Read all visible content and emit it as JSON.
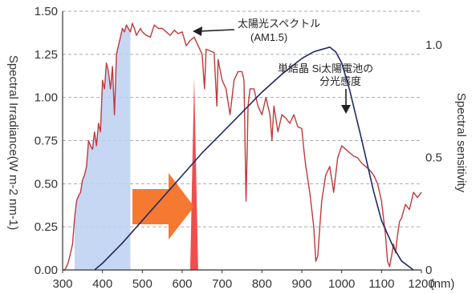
{
  "chart_data": {
    "type": "line",
    "title": "",
    "xlabel_unit": "(nm)",
    "ylabel_left": "Spectral Irradiance(W m-2 nm-1)",
    "ylabel_right": "Spectral sensitivity",
    "xlim": [
      300,
      1200
    ],
    "ylim_left": [
      0,
      1.5
    ],
    "ylim_right": [
      0,
      1.15
    ],
    "x_ticks": [
      "300",
      "400",
      "500",
      "600",
      "700",
      "800",
      "900",
      "1000",
      "1100",
      "1200"
    ],
    "y_left_ticks": [
      "0.00",
      "0.25",
      "0.50",
      "0.75",
      "1.00",
      "1.25",
      "1.50"
    ],
    "y_right_ticks": [
      "0",
      "0.5",
      "1.0"
    ],
    "grid": "horizontal dashed",
    "colors": {
      "irradiance": "#c0393b",
      "sensitivity": "#1f2a66",
      "blue_band": "#bcd0f2",
      "red_band": "#ee3b3b",
      "arrow": "#f46a1b",
      "grid": "#aaaaaa"
    },
    "series": [
      {
        "name": "太陽光スペクトル (AM1.5)",
        "axis": "left",
        "x": [
          300,
          305,
          310,
          315,
          320,
          325,
          330,
          335,
          340,
          345,
          350,
          355,
          360,
          365,
          370,
          375,
          380,
          385,
          390,
          395,
          400,
          405,
          410,
          415,
          420,
          425,
          430,
          435,
          440,
          445,
          450,
          455,
          460,
          465,
          470,
          475,
          480,
          485,
          490,
          495,
          500,
          510,
          520,
          530,
          540,
          550,
          560,
          570,
          580,
          590,
          600,
          610,
          620,
          630,
          640,
          650,
          656,
          660,
          670,
          680,
          687,
          690,
          700,
          710,
          720,
          725,
          730,
          740,
          750,
          755,
          760,
          763,
          765,
          770,
          780,
          790,
          800,
          810,
          820,
          825,
          830,
          840,
          850,
          860,
          870,
          880,
          890,
          900,
          905,
          910,
          920,
          930,
          935,
          940,
          945,
          950,
          960,
          970,
          980,
          990,
          1000,
          1010,
          1020,
          1030,
          1040,
          1050,
          1060,
          1070,
          1080,
          1090,
          1100,
          1110,
          1115,
          1120,
          1125,
          1130,
          1135,
          1140,
          1145,
          1150,
          1160,
          1170,
          1180,
          1190,
          1200
        ],
        "y": [
          0.0,
          0.0,
          0.02,
          0.05,
          0.1,
          0.15,
          0.3,
          0.4,
          0.43,
          0.45,
          0.52,
          0.55,
          0.6,
          0.75,
          0.72,
          0.7,
          0.8,
          0.72,
          0.85,
          0.8,
          1.1,
          1.05,
          1.2,
          1.15,
          1.05,
          1.18,
          0.9,
          1.25,
          1.3,
          1.35,
          1.4,
          1.38,
          1.42,
          1.4,
          1.38,
          1.43,
          1.4,
          1.36,
          1.38,
          1.4,
          1.38,
          1.36,
          1.35,
          1.42,
          1.4,
          1.4,
          1.38,
          1.36,
          1.39,
          1.37,
          1.38,
          1.3,
          1.33,
          1.35,
          1.3,
          1.25,
          1.05,
          1.28,
          1.27,
          1.26,
          0.95,
          1.22,
          1.1,
          1.05,
          0.9,
          1.0,
          1.1,
          1.15,
          1.15,
          1.1,
          0.4,
          0.7,
          0.95,
          1.05,
          1.05,
          0.95,
          0.9,
          1.0,
          0.9,
          0.75,
          0.95,
          0.8,
          0.9,
          0.88,
          0.85,
          0.9,
          0.83,
          0.82,
          0.7,
          0.6,
          0.45,
          0.25,
          0.05,
          0.08,
          0.25,
          0.4,
          0.55,
          0.6,
          0.45,
          0.65,
          0.72,
          0.7,
          0.68,
          0.66,
          0.65,
          0.62,
          0.6,
          0.58,
          0.55,
          0.5,
          0.4,
          0.2,
          0.05,
          0.02,
          0.08,
          0.15,
          0.1,
          0.2,
          0.28,
          0.3,
          0.38,
          0.35,
          0.45,
          0.42,
          0.45
        ]
      },
      {
        "name": "単結晶 Si太陽電池の分光感度",
        "axis": "right",
        "x": [
          380,
          400,
          450,
          500,
          550,
          600,
          650,
          700,
          750,
          800,
          850,
          900,
          930,
          950,
          970,
          985,
          1000,
          1020,
          1050,
          1080,
          1100,
          1130,
          1150,
          1180
        ],
        "y": [
          0.0,
          0.03,
          0.12,
          0.22,
          0.32,
          0.42,
          0.52,
          0.61,
          0.7,
          0.79,
          0.87,
          0.94,
          0.97,
          0.98,
          0.99,
          0.97,
          0.92,
          0.8,
          0.58,
          0.35,
          0.22,
          0.1,
          0.04,
          0.0
        ]
      }
    ],
    "annotations": {
      "sunlight_label": "太陽光スペクトル",
      "sunlight_sub": "(AM1.5)",
      "si_label_1": "単結晶 Si太陽電池の",
      "si_label_2": "分光感度"
    },
    "blue_band_range": [
      330,
      470
    ],
    "red_band_peak": 630
  }
}
